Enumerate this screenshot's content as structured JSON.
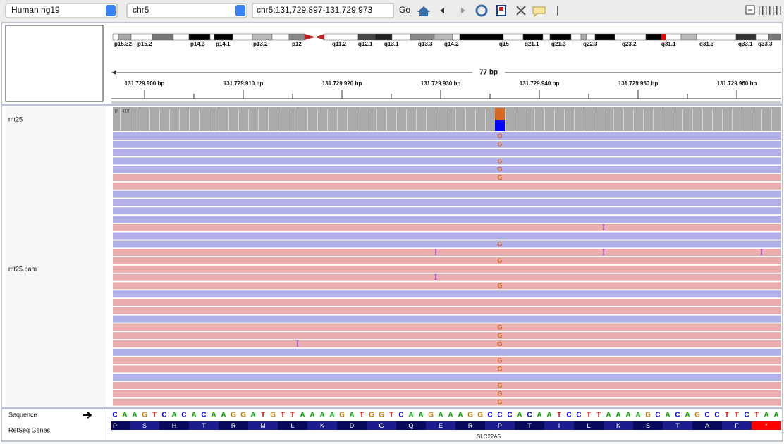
{
  "toolbar": {
    "genome": "Human hg19",
    "chromosome": "chr5",
    "locus": "chr5:131,729,897-131,729,973",
    "go": "Go"
  },
  "ideogram": {
    "bands": [
      "p15.32",
      "p15.2",
      "p14.3",
      "p14.1",
      "p13.2",
      "p12",
      "q11.2",
      "q12.1",
      "q13.1",
      "q13.3",
      "q14.2",
      "q15",
      "q21.1",
      "q21.3",
      "q22.3",
      "q23.2",
      "q31.1",
      "q31.3",
      "q33.1",
      "q33.3"
    ]
  },
  "ruler": {
    "span": "77 bp",
    "labels": [
      "131.729.900 bp",
      "131.729.910 bp",
      "131.729.920 bp",
      "131.729.930 bp",
      "131.729.940 bp",
      "131.729.950 bp",
      "131.729.960 bp"
    ]
  },
  "tracks": {
    "coverage": {
      "name": "mt25",
      "range": "[0 - 419]"
    },
    "alignments": {
      "name": "mt25.bam",
      "reads": [
        {
          "strand": "+",
          "mismatches": [
            {
              "pos": 131729936,
              "base": "G"
            }
          ]
        },
        {
          "strand": "+",
          "mismatches": [
            {
              "pos": 131729936,
              "base": "G"
            }
          ]
        },
        {
          "strand": "+"
        },
        {
          "strand": "+",
          "mismatches": [
            {
              "pos": 131729936,
              "base": "G"
            }
          ]
        },
        {
          "strand": "+",
          "mismatches": [
            {
              "pos": 131729936,
              "base": "G"
            }
          ]
        },
        {
          "strand": "-",
          "mismatches": [
            {
              "pos": 131729936,
              "base": "G"
            }
          ]
        },
        {
          "strand": "-"
        },
        {
          "strand": "+"
        },
        {
          "strand": "+"
        },
        {
          "strand": "+"
        },
        {
          "strand": "+"
        },
        {
          "strand": "-",
          "insertions": [
            {
              "pos": 131729946,
              "label": "I"
            }
          ]
        },
        {
          "strand": "+"
        },
        {
          "strand": "+",
          "mismatches": [
            {
              "pos": 131729936,
              "base": "G"
            }
          ]
        },
        {
          "strand": "-",
          "insertions": [
            {
              "pos": 131729929,
              "label": "I"
            },
            {
              "pos": 131729946,
              "label": "I"
            },
            {
              "pos": 131729962,
              "label": "I"
            }
          ]
        },
        {
          "strand": "-",
          "mismatches": [
            {
              "pos": 131729936,
              "base": "G"
            }
          ]
        },
        {
          "strand": "-"
        },
        {
          "strand": "-",
          "insertions": [
            {
              "pos": 131729929,
              "label": "I"
            }
          ]
        },
        {
          "strand": "-",
          "mismatches": [
            {
              "pos": 131729936,
              "base": "G"
            }
          ]
        },
        {
          "strand": "+"
        },
        {
          "strand": "-"
        },
        {
          "strand": "-"
        },
        {
          "strand": "+"
        },
        {
          "strand": "-",
          "mismatches": [
            {
              "pos": 131729936,
              "base": "G"
            }
          ]
        },
        {
          "strand": "-",
          "mismatches": [
            {
              "pos": 131729936,
              "base": "G"
            }
          ]
        },
        {
          "strand": "-",
          "mismatches": [
            {
              "pos": 131729936,
              "base": "G"
            }
          ],
          "insertions": [
            {
              "pos": 131729915,
              "label": "I"
            }
          ]
        },
        {
          "strand": "+"
        },
        {
          "strand": "-",
          "mismatches": [
            {
              "pos": 131729936,
              "base": "G"
            }
          ]
        },
        {
          "strand": "-",
          "mismatches": [
            {
              "pos": 131729936,
              "base": "G"
            }
          ]
        },
        {
          "strand": "+"
        },
        {
          "strand": "-",
          "mismatches": [
            {
              "pos": 131729936,
              "base": "G"
            }
          ]
        },
        {
          "strand": "-",
          "mismatches": [
            {
              "pos": 131729936,
              "base": "G"
            }
          ]
        },
        {
          "strand": "-",
          "mismatches": [
            {
              "pos": 131729936,
              "base": "G"
            }
          ]
        }
      ]
    },
    "sequence": {
      "name": "Sequence",
      "start": 131729897,
      "bases": [
        "C",
        "A",
        "A",
        "G",
        "T",
        "C",
        "A",
        "C",
        "A",
        "C",
        "A",
        "A",
        "G",
        "G",
        "A",
        "T",
        "G",
        "T",
        "T",
        "A",
        "A",
        "A",
        "A",
        "G",
        "A",
        "T",
        "G",
        "G",
        "T",
        "C",
        "A",
        "A",
        "G",
        "A",
        "A",
        "A",
        "G",
        "G",
        "C",
        "C",
        "C",
        "A",
        "C",
        "A",
        "A",
        "T",
        "C",
        "C",
        "T",
        "T",
        "A",
        "A",
        "A",
        "A",
        "G",
        "C",
        "A",
        "C",
        "A",
        "G",
        "C",
        "C",
        "T",
        "T",
        "C",
        "T",
        "A",
        "A"
      ]
    },
    "genes": {
      "name": "RefSeq Genes",
      "gene": "SLC22A5",
      "amino_acids": [
        "P",
        "S",
        "H",
        "T",
        "R",
        "M",
        "L",
        "K",
        "D",
        "G",
        "Q",
        "E",
        "R",
        "P",
        "T",
        "I",
        "L",
        "K",
        "S",
        "T",
        "A",
        "F",
        "*"
      ]
    }
  }
}
